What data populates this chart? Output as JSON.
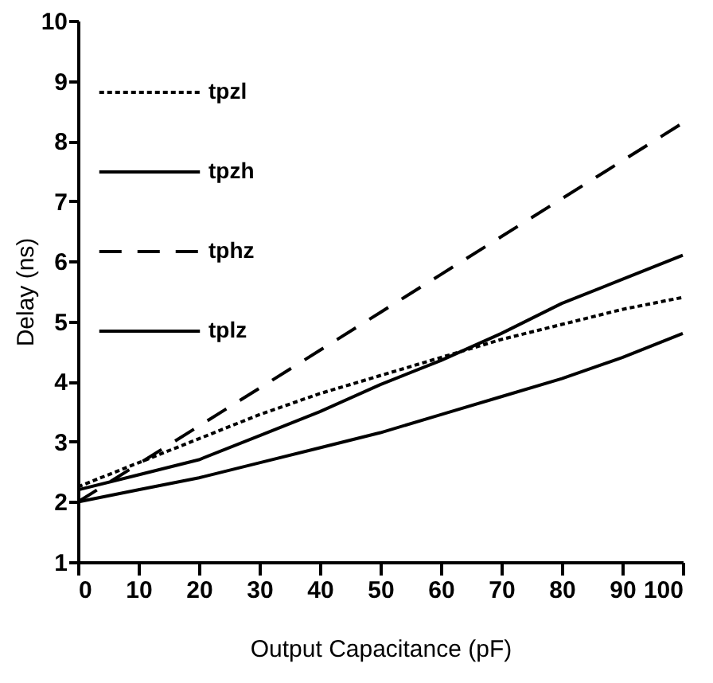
{
  "chart_data": {
    "type": "line",
    "xlabel": "Output Capacitance (pF)",
    "ylabel": "Delay (ns)",
    "x": [
      0,
      10,
      20,
      30,
      40,
      50,
      60,
      70,
      80,
      90,
      100
    ],
    "series": [
      {
        "name": "tpzl",
        "color": "#000000",
        "line_style": "dotted",
        "values": [
          2.25,
          2.65,
          3.05,
          3.45,
          3.8,
          4.1,
          4.4,
          4.7,
          4.95,
          5.2,
          5.4
        ]
      },
      {
        "name": "tpzh",
        "color": "#000000",
        "line_style": "solid",
        "values": [
          2.2,
          2.45,
          2.7,
          3.1,
          3.5,
          3.95,
          4.35,
          4.8,
          5.3,
          5.7,
          6.1
        ]
      },
      {
        "name": "tphz",
        "color": "#000000",
        "line_style": "dashed",
        "values": [
          2.0,
          2.63,
          3.26,
          3.89,
          4.52,
          5.15,
          5.78,
          6.41,
          7.04,
          7.67,
          8.3
        ]
      },
      {
        "name": "tplz",
        "color": "#000000",
        "line_style": "solid",
        "values": [
          2.0,
          2.2,
          2.4,
          2.65,
          2.9,
          3.15,
          3.45,
          3.75,
          4.05,
          4.4,
          4.8
        ]
      }
    ],
    "xlim": [
      0,
      100
    ],
    "xticks": [
      0,
      10,
      20,
      30,
      40,
      50,
      60,
      70,
      80,
      90,
      100
    ],
    "ylim": [
      1,
      10
    ],
    "yticks": [
      1,
      2,
      3,
      4,
      5,
      6,
      7,
      8,
      9,
      10
    ],
    "grid": false,
    "legend": "top left",
    "marker": "none"
  }
}
